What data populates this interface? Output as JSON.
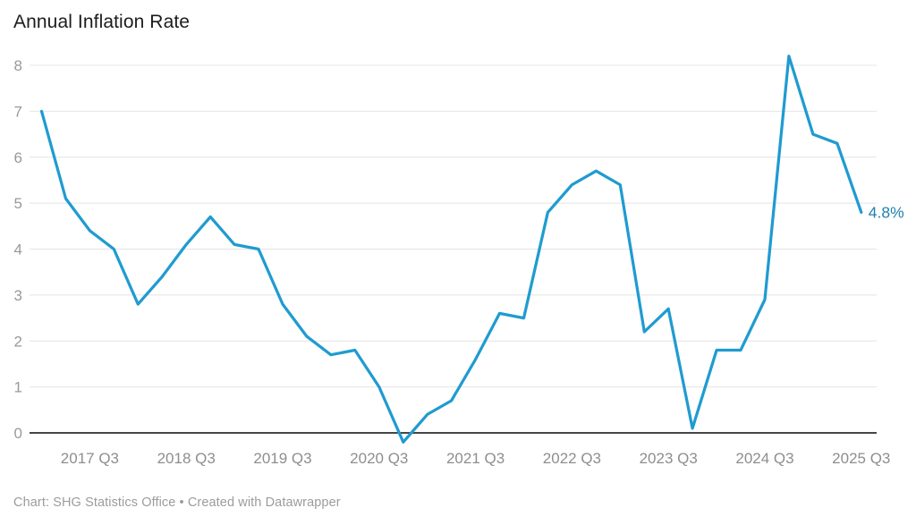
{
  "header": {
    "title": "Annual Inflation Rate"
  },
  "footer": {
    "text": "Chart: SHG Statistics Office • Created with Datawrapper"
  },
  "chart_data": {
    "type": "line",
    "title": "Annual Inflation Rate",
    "unit": "%",
    "x": [
      "2017 Q1",
      "2017 Q2",
      "2017 Q3",
      "2017 Q4",
      "2018 Q1",
      "2018 Q2",
      "2018 Q3",
      "2018 Q4",
      "2019 Q1",
      "2019 Q2",
      "2019 Q3",
      "2019 Q4",
      "2020 Q1",
      "2020 Q2",
      "2020 Q3",
      "2020 Q4",
      "2021 Q1",
      "2021 Q2",
      "2021 Q3",
      "2021 Q4",
      "2022 Q1",
      "2022 Q2",
      "2022 Q3",
      "2022 Q4",
      "2023 Q1",
      "2023 Q2",
      "2023 Q3",
      "2023 Q4",
      "2024 Q1",
      "2024 Q2",
      "2024 Q3",
      "2024 Q4",
      "2025 Q1",
      "2025 Q2",
      "2025 Q3"
    ],
    "series": [
      {
        "name": "Annual Inflation Rate",
        "values": [
          7.0,
          5.1,
          4.4,
          4.0,
          2.8,
          3.4,
          4.1,
          4.7,
          4.1,
          4.0,
          2.8,
          2.1,
          1.7,
          1.8,
          1.0,
          -0.2,
          0.4,
          0.7,
          1.6,
          2.6,
          2.5,
          4.8,
          5.4,
          5.7,
          5.4,
          2.2,
          2.7,
          0.1,
          1.8,
          1.8,
          2.9,
          8.2,
          6.5,
          6.3,
          4.8
        ]
      }
    ],
    "x_tick_labels": [
      "2017 Q3",
      "2018 Q3",
      "2019 Q3",
      "2020 Q3",
      "2021 Q3",
      "2022 Q3",
      "2023 Q3",
      "2024 Q3",
      "2025 Q3"
    ],
    "yticks": [
      0,
      1,
      2,
      3,
      4,
      5,
      6,
      7,
      8
    ],
    "ylim": [
      -0.4,
      8.3
    ],
    "grid": "horizontal",
    "legend": "none",
    "end_label": "4.8%",
    "line_color": "#209bd0",
    "end_label_color": "#1e82b0",
    "source": "SHG Statistics Office",
    "tool": "Datawrapper"
  }
}
